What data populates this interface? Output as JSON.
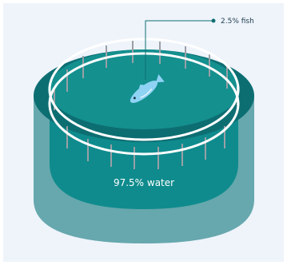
{
  "labels": {
    "fish": "2.5% fish",
    "water": "97.5% water"
  },
  "colors": {
    "background": "#eef4fa",
    "tank_dark": "#0d6e72",
    "tank_body": "#0f8b8d",
    "tank_side_light": "#66a8ad",
    "water_surface": "#14908f",
    "rail": "#ffffff",
    "rail_post": "#9aa0a6",
    "fish": "#8fd3f4",
    "leader_line": "#0f6e72"
  },
  "proportions": {
    "fish_percent": 2.5,
    "water_percent": 97.5
  },
  "icons": [
    "fish-icon",
    "net-pen-icon"
  ]
}
